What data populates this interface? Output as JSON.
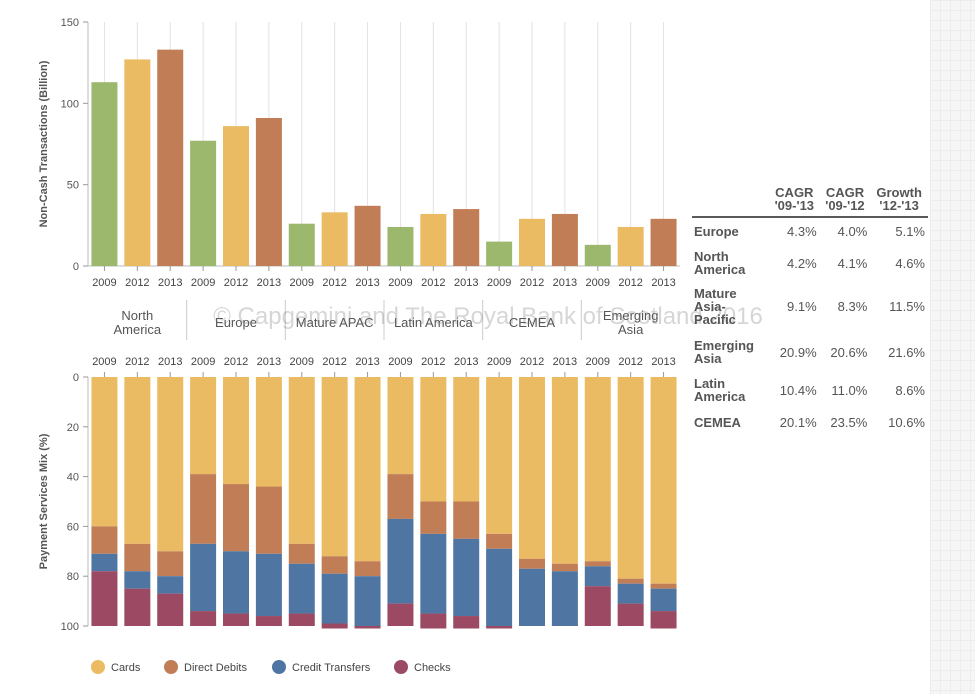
{
  "chart_data": [
    {
      "type": "bar",
      "ylabel": "Non-Cash Transactions (Billion)",
      "ylim": [
        0,
        150
      ],
      "yticks": [
        0,
        50,
        100,
        150
      ],
      "series_names": [
        "2009",
        "2012",
        "2013"
      ],
      "regions": [
        {
          "name": "North America",
          "label_lines": [
            "North",
            "America"
          ],
          "years": [
            "2009",
            "2012",
            "2013"
          ],
          "values": [
            113,
            127,
            133
          ]
        },
        {
          "name": "Europe",
          "label_lines": [
            "Europe"
          ],
          "years": [
            "2009",
            "2012",
            "2013"
          ],
          "values": [
            77,
            86,
            91
          ]
        },
        {
          "name": "Mature APAC",
          "label_lines": [
            "Mature APAC"
          ],
          "years": [
            "2009",
            "2012",
            "2013"
          ],
          "values": [
            26,
            33,
            37
          ]
        },
        {
          "name": "Latin America",
          "label_lines": [
            "Latin America"
          ],
          "years": [
            "2009",
            "2012",
            "2013"
          ],
          "values": [
            24,
            32,
            35
          ]
        },
        {
          "name": "CEMEA",
          "label_lines": [
            "CEMEA"
          ],
          "years": [
            "2009",
            "2012",
            "2013"
          ],
          "values": [
            15,
            29,
            32
          ]
        },
        {
          "name": "Emerging Asia",
          "label_lines": [
            "Emerging",
            "Asia"
          ],
          "years": [
            "2009",
            "2012",
            "2013"
          ],
          "values": [
            13,
            24,
            29
          ]
        }
      ],
      "colors": {
        "2009": "#9cb86d",
        "2012": "#ebbb64",
        "2013": "#c07d56"
      },
      "grid": "vertical"
    },
    {
      "type": "bar",
      "stacked": true,
      "ylabel": "Payment Services Mix (%)",
      "ylim": [
        0,
        100
      ],
      "yticks": [
        0,
        20,
        40,
        60,
        80,
        100
      ],
      "y_inverted": true,
      "legend_position": "bottom",
      "series": [
        {
          "name": "Cards",
          "color": "#ebbb64",
          "values": [
            60,
            67,
            70,
            39,
            43,
            44,
            67,
            72,
            74,
            39,
            50,
            50,
            63,
            73,
            75,
            74,
            81,
            83
          ]
        },
        {
          "name": "Direct Debits",
          "color": "#c07d56",
          "values": [
            11,
            11,
            10,
            28,
            27,
            27,
            8,
            7,
            6,
            18,
            13,
            15,
            6,
            4,
            3,
            2,
            2,
            2
          ]
        },
        {
          "name": "Credit Transfers",
          "color": "#4f76a2",
          "values": [
            7,
            7,
            7,
            27,
            25,
            25,
            20,
            20,
            20,
            34,
            32,
            31,
            31,
            23,
            22,
            8,
            8,
            9
          ]
        },
        {
          "name": "Checks",
          "color": "#9c4a63",
          "values": [
            22,
            15,
            13,
            6,
            5,
            4,
            5,
            2,
            1,
            9,
            6,
            5,
            1,
            0,
            0,
            16,
            9,
            7
          ]
        }
      ]
    }
  ],
  "table": {
    "headers": [
      {
        "l1": "CAGR",
        "l2": "'09-'13"
      },
      {
        "l1": "CAGR",
        "l2": "'09-'12"
      },
      {
        "l1": "Growth",
        "l2": "'12-'13"
      }
    ],
    "rows": [
      {
        "lines": [
          "Europe"
        ],
        "v": [
          "4.3%",
          "4.0%",
          "5.1%"
        ]
      },
      {
        "lines": [
          "North",
          "America"
        ],
        "v": [
          "4.2%",
          "4.1%",
          "4.6%"
        ]
      },
      {
        "lines": [
          "Mature",
          "Asia-",
          "Pacific"
        ],
        "v": [
          "9.1%",
          "8.3%",
          "11.5%"
        ]
      },
      {
        "lines": [
          "Emerging",
          "Asia"
        ],
        "v": [
          "20.9%",
          "20.6%",
          "21.6%"
        ]
      },
      {
        "lines": [
          "Latin",
          "America"
        ],
        "v": [
          "10.4%",
          "11.0%",
          "8.6%"
        ]
      },
      {
        "lines": [
          "CEMEA"
        ],
        "v": [
          "20.1%",
          "23.5%",
          "10.6%"
        ]
      }
    ]
  },
  "watermark": "© Capgemini and The Royal Bank of Scotland 2016"
}
